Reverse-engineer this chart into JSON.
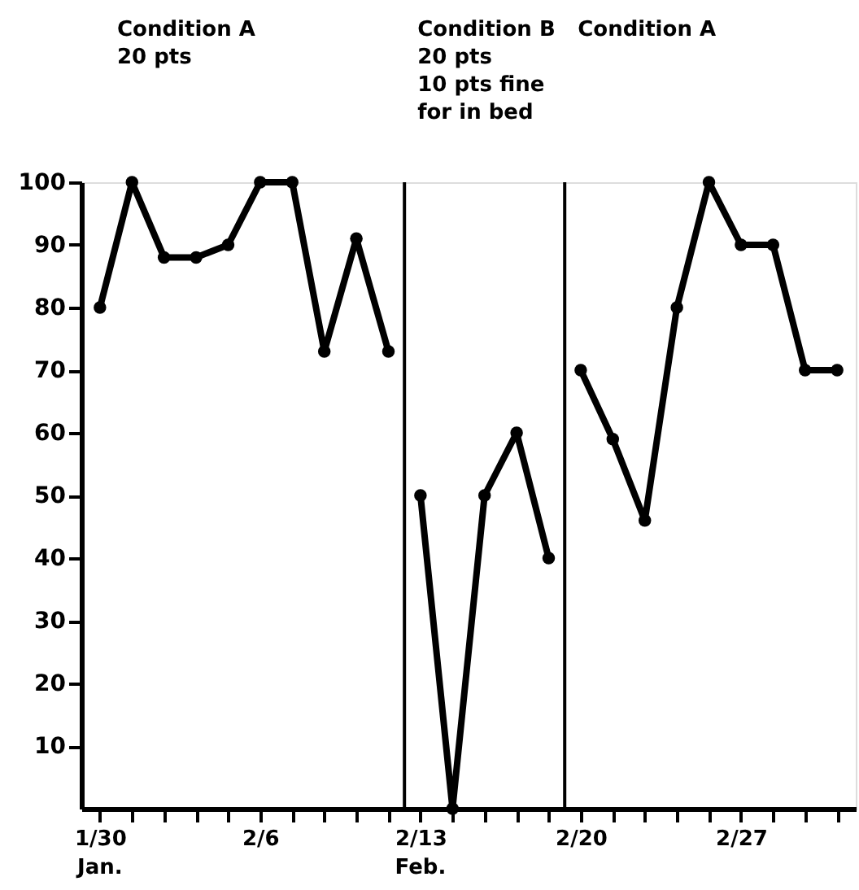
{
  "chart_data": {
    "type": "line",
    "categories": [
      "1/30",
      null,
      null,
      null,
      null,
      "2/6",
      null,
      null,
      null,
      null,
      "2/13",
      null,
      null,
      null,
      null,
      "2/20",
      null,
      null,
      null,
      null,
      "2/27",
      null,
      null,
      null
    ],
    "series": [
      {
        "color": "#000000",
        "values": [
          80,
          100,
          88,
          88,
          90,
          100,
          100,
          73,
          91,
          73,
          null,
          null,
          null,
          null,
          null,
          null,
          null,
          null,
          null,
          null,
          null,
          null,
          null,
          null
        ]
      },
      {
        "color": "#000000",
        "values": [
          null,
          null,
          null,
          null,
          null,
          null,
          null,
          null,
          null,
          null,
          50,
          0,
          50,
          60,
          40,
          null,
          null,
          null,
          null,
          null,
          null,
          null,
          null,
          null
        ]
      },
      {
        "color": "#000000",
        "values": [
          null,
          null,
          null,
          null,
          null,
          null,
          null,
          null,
          null,
          null,
          null,
          null,
          null,
          null,
          null,
          70,
          59,
          46,
          80,
          100,
          90,
          90,
          70,
          70
        ]
      }
    ],
    "ylim": [
      0,
      100
    ],
    "yticks": [
      10,
      20,
      30,
      40,
      50,
      60,
      70,
      80,
      90,
      100
    ],
    "annotations": [
      "Condition A\n20 pts",
      "Condition B\n20 pts\n10 pts fine\nfor in bed",
      "Condition A",
      "Jan.",
      "Feb."
    ],
    "marker": "circle",
    "line_style": "solid",
    "grid": false,
    "legend": false
  }
}
